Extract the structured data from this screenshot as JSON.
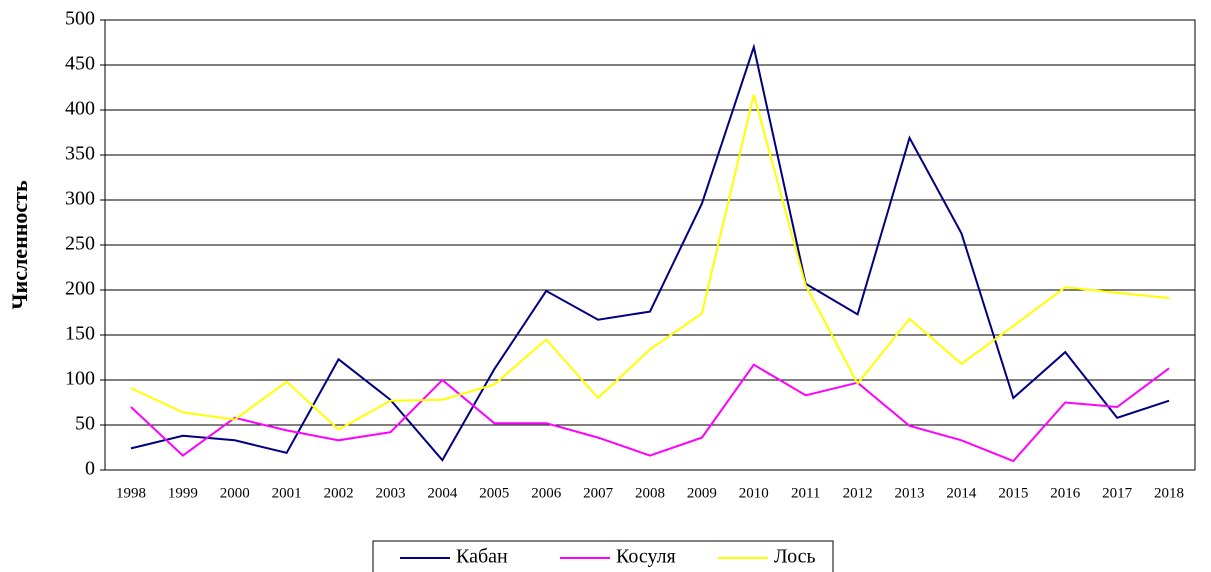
{
  "chart_data": {
    "type": "line",
    "ylabel": "Численность",
    "categories": [
      "1998",
      "1999",
      "2000",
      "2001",
      "2002",
      "2003",
      "2004",
      "2005",
      "2006",
      "2007",
      "2008",
      "2009",
      "2010",
      "2011",
      "2012",
      "2013",
      "2014",
      "2015",
      "2016",
      "2017",
      "2018"
    ],
    "series": [
      {
        "name": "Кабан",
        "color": "#000080",
        "values": [
          24,
          38,
          33,
          19,
          123,
          78,
          11,
          112,
          199,
          167,
          176,
          296,
          470,
          207,
          173,
          369,
          263,
          80,
          131,
          58,
          77
        ]
      },
      {
        "name": "Косуля",
        "color": "#ff00ff",
        "values": [
          70,
          16,
          58,
          44,
          33,
          42,
          100,
          52,
          52,
          36,
          16,
          36,
          117,
          83,
          97,
          49,
          33,
          10,
          75,
          70,
          113
        ]
      },
      {
        "name": "Лось",
        "color": "#ffff00",
        "values": [
          91,
          64,
          56,
          98,
          45,
          77,
          78,
          95,
          145,
          80,
          134,
          174,
          417,
          205,
          96,
          168,
          118,
          160,
          203,
          197,
          191
        ]
      }
    ],
    "ylim": [
      0,
      500
    ],
    "yticks": [
      0,
      50,
      100,
      150,
      200,
      250,
      300,
      350,
      400,
      450,
      500
    ],
    "grid": true,
    "legend": "bottom"
  }
}
